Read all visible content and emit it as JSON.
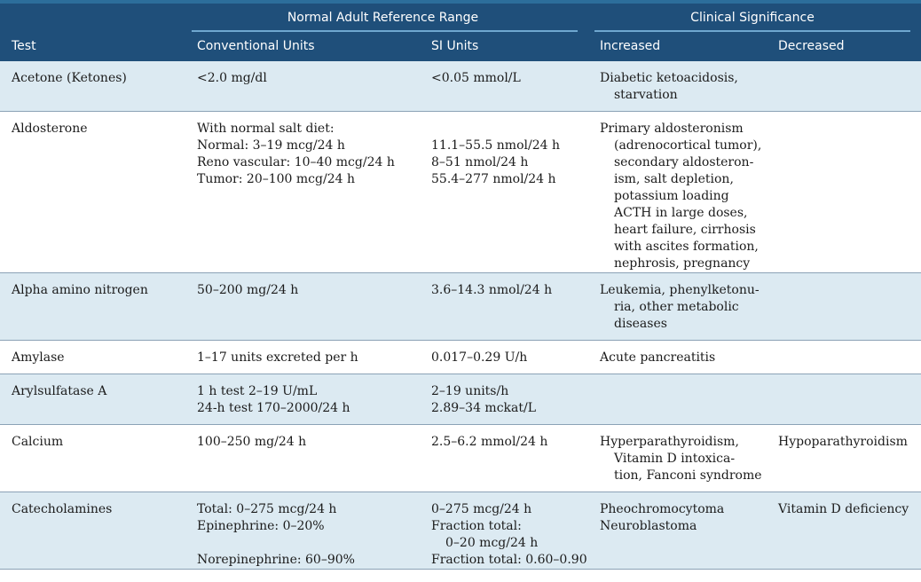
{
  "header": {
    "group_reference": "Normal Adult Reference Range",
    "group_clinical": "Clinical Significance",
    "col_test": "Test",
    "col_conventional": "Conventional Units",
    "col_si": "SI Units",
    "col_increased": "Increased",
    "col_decreased": "Decreased"
  },
  "rows": [
    {
      "test": [
        "Acetone (Ketones)"
      ],
      "conventional": [
        "<2.0 mg/dl"
      ],
      "si": [
        "<0.05 mmol/L"
      ],
      "increased": [
        "Diabetic ketoacidosis,",
        "starvation"
      ],
      "decreased": []
    },
    {
      "test": [
        "Aldosterone"
      ],
      "conventional": [
        "With normal salt diet:",
        "Normal: 3–19 mcg/24 h",
        "Reno vascular: 10–40 mcg/24 h",
        "Tumor: 20–100 mcg/24 h"
      ],
      "si": [
        "",
        "11.1–55.5 nmol/24 h",
        "8–51 nmol/24 h",
        "55.4–277 nmol/24 h"
      ],
      "increased": [
        "Primary aldosteronism",
        "(adrenocortical tumor),",
        "secondary aldosteron-",
        "ism, salt depletion,",
        "potassium loading",
        "ACTH in large doses,",
        "heart failure, cirrhosis",
        "with ascites formation,",
        "nephrosis, pregnancy"
      ],
      "decreased": []
    },
    {
      "test": [
        "Alpha amino nitrogen"
      ],
      "conventional": [
        "50–200 mg/24 h"
      ],
      "si": [
        "3.6–14.3 nmol/24 h"
      ],
      "increased": [
        "Leukemia, phenylketonu-",
        "ria, other metabolic",
        "diseases"
      ],
      "decreased": []
    },
    {
      "test": [
        "Amylase"
      ],
      "conventional": [
        "1–17 units excreted per h"
      ],
      "si": [
        "0.017–0.29 U/h"
      ],
      "increased": [
        "Acute pancreatitis"
      ],
      "decreased": []
    },
    {
      "test": [
        "Arylsulfatase A"
      ],
      "conventional": [
        "1 h test 2–19 U/mL",
        "24-h test 170–2000/24 h"
      ],
      "si": [
        "2–19 units/h",
        "2.89–34 mckat/L"
      ],
      "increased": [],
      "decreased": []
    },
    {
      "test": [
        "Calcium"
      ],
      "conventional": [
        "100–250 mg/24 h"
      ],
      "si": [
        "2.5–6.2 mmol/24 h"
      ],
      "increased": [
        "Hyperparathyroidism,",
        "Vitamin D intoxica-",
        "tion, Fanconi syndrome"
      ],
      "decreased": [
        "Hypoparathyroidism"
      ]
    },
    {
      "test": [
        "Catecholamines"
      ],
      "conventional": [
        "Total: 0–275 mcg/24 h",
        "Epinephrine: 0–20%",
        "",
        "Norepinephrine: 60–90%"
      ],
      "si": [
        "0–275 mcg/24 h",
        "Fraction total:",
        "0–20 mcg/24 h",
        "Fraction total: 0.60–0.90"
      ],
      "increased": [
        "Pheochromocytoma",
        "Neuroblastoma"
      ],
      "decreased": [
        "Vitamin D deficiency"
      ]
    }
  ]
}
